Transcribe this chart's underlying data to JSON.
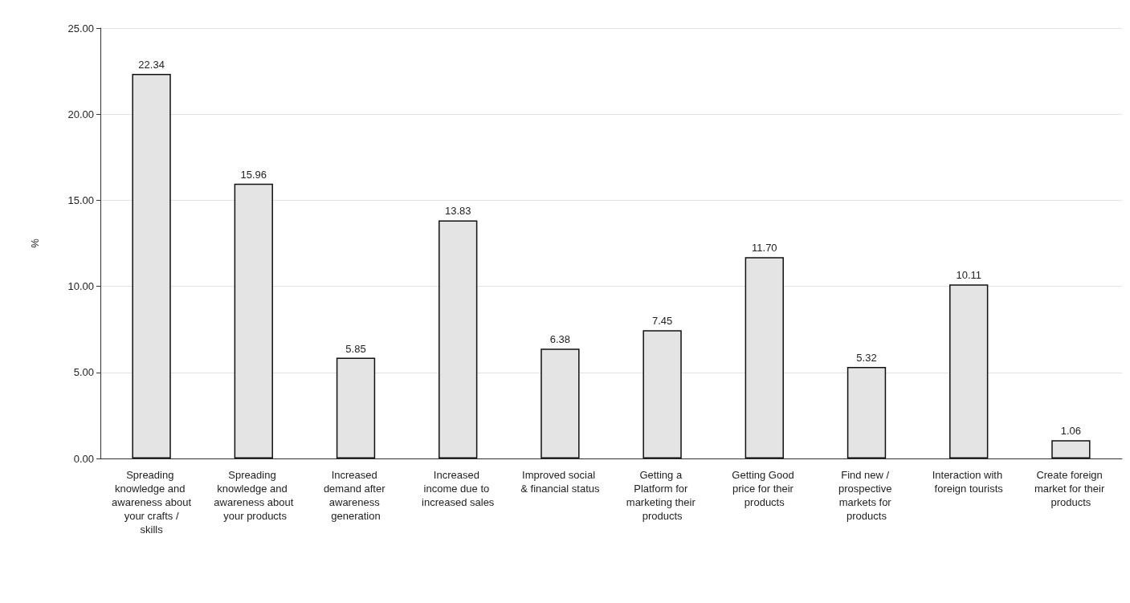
{
  "chart_data": {
    "type": "bar",
    "ylabel": "%",
    "categories": [
      "Spreading knowledge and awareness about your crafts / skills",
      "Spreading knowledge and awareness about your products",
      "Increased demand after awareness generation",
      "Increased income due to increased sales",
      "Improved social & financial status",
      "Getting a Platform for marketing their products",
      "Getting Good price for their products",
      "Find new / prospective markets for products",
      "Interaction with foreign tourists",
      "Create foreign market for their products"
    ],
    "values": [
      22.34,
      15.96,
      5.85,
      13.83,
      6.38,
      7.45,
      11.7,
      5.32,
      10.11,
      1.06
    ],
    "value_labels": [
      "22.34",
      "15.96",
      "5.85",
      "13.83",
      "6.38",
      "7.45",
      "11.70",
      "5.32",
      "10.11",
      "1.06"
    ],
    "color": "#e4e4e4",
    "ylim": [
      0,
      25
    ],
    "yticks": [
      {
        "value": 0,
        "label": "0.00"
      },
      {
        "value": 5,
        "label": "5.00"
      },
      {
        "value": 10,
        "label": "10.00"
      },
      {
        "value": 15,
        "label": "15.00"
      },
      {
        "value": 20,
        "label": "20.00"
      },
      {
        "value": 25,
        "label": "25.00"
      }
    ],
    "grid": "y"
  }
}
